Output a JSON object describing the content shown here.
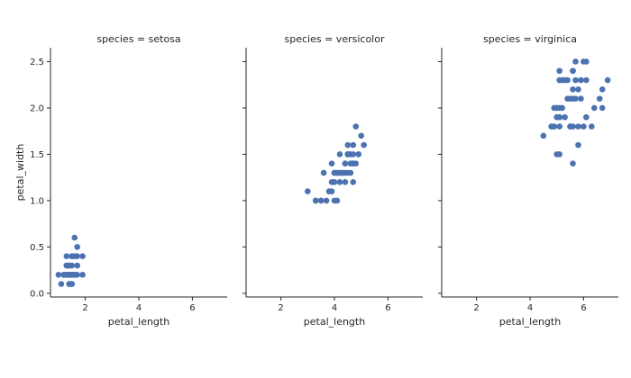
{
  "chart_data": {
    "type": "scatter",
    "marker_color": "#4c72b0",
    "xlim": [
      0.7,
      7.3
    ],
    "ylim": [
      -0.04,
      2.65
    ],
    "xticks": [
      2,
      4,
      6
    ],
    "yticks": [
      0.0,
      0.5,
      1.0,
      1.5,
      2.0,
      2.5
    ],
    "ytick_labels": [
      "0.0",
      "0.5",
      "1.0",
      "1.5",
      "2.0",
      "2.5"
    ],
    "xlabel": "petal_length",
    "ylabel": "petal_width",
    "grid": false,
    "facets": [
      {
        "title": "species = setosa",
        "points": [
          [
            1.4,
            0.2
          ],
          [
            1.4,
            0.2
          ],
          [
            1.3,
            0.2
          ],
          [
            1.5,
            0.2
          ],
          [
            1.4,
            0.2
          ],
          [
            1.7,
            0.4
          ],
          [
            1.4,
            0.3
          ],
          [
            1.5,
            0.2
          ],
          [
            1.4,
            0.2
          ],
          [
            1.5,
            0.1
          ],
          [
            1.5,
            0.2
          ],
          [
            1.6,
            0.2
          ],
          [
            1.4,
            0.1
          ],
          [
            1.1,
            0.1
          ],
          [
            1.2,
            0.2
          ],
          [
            1.5,
            0.4
          ],
          [
            1.3,
            0.4
          ],
          [
            1.4,
            0.3
          ],
          [
            1.7,
            0.3
          ],
          [
            1.5,
            0.3
          ],
          [
            1.7,
            0.2
          ],
          [
            1.5,
            0.4
          ],
          [
            1.0,
            0.2
          ],
          [
            1.7,
            0.5
          ],
          [
            1.9,
            0.2
          ],
          [
            1.6,
            0.2
          ],
          [
            1.6,
            0.4
          ],
          [
            1.5,
            0.2
          ],
          [
            1.4,
            0.2
          ],
          [
            1.6,
            0.2
          ],
          [
            1.6,
            0.2
          ],
          [
            1.5,
            0.4
          ],
          [
            1.5,
            0.1
          ],
          [
            1.4,
            0.2
          ],
          [
            1.5,
            0.2
          ],
          [
            1.2,
            0.2
          ],
          [
            1.3,
            0.2
          ],
          [
            1.4,
            0.1
          ],
          [
            1.3,
            0.2
          ],
          [
            1.5,
            0.2
          ],
          [
            1.3,
            0.3
          ],
          [
            1.3,
            0.3
          ],
          [
            1.3,
            0.2
          ],
          [
            1.6,
            0.6
          ],
          [
            1.9,
            0.4
          ],
          [
            1.4,
            0.3
          ],
          [
            1.6,
            0.2
          ],
          [
            1.4,
            0.2
          ],
          [
            1.5,
            0.2
          ],
          [
            1.4,
            0.2
          ]
        ]
      },
      {
        "title": "species = versicolor",
        "points": [
          [
            4.7,
            1.4
          ],
          [
            4.5,
            1.5
          ],
          [
            4.9,
            1.5
          ],
          [
            4.0,
            1.3
          ],
          [
            4.6,
            1.5
          ],
          [
            4.5,
            1.3
          ],
          [
            4.7,
            1.6
          ],
          [
            3.3,
            1.0
          ],
          [
            4.6,
            1.3
          ],
          [
            3.9,
            1.4
          ],
          [
            3.5,
            1.0
          ],
          [
            4.2,
            1.5
          ],
          [
            4.0,
            1.0
          ],
          [
            4.7,
            1.4
          ],
          [
            3.6,
            1.3
          ],
          [
            4.4,
            1.4
          ],
          [
            4.5,
            1.5
          ],
          [
            4.1,
            1.0
          ],
          [
            4.5,
            1.5
          ],
          [
            3.9,
            1.1
          ],
          [
            4.8,
            1.8
          ],
          [
            4.0,
            1.3
          ],
          [
            4.9,
            1.5
          ],
          [
            4.7,
            1.2
          ],
          [
            4.3,
            1.3
          ],
          [
            4.4,
            1.4
          ],
          [
            4.8,
            1.4
          ],
          [
            5.0,
            1.7
          ],
          [
            4.5,
            1.5
          ],
          [
            3.5,
            1.0
          ],
          [
            3.8,
            1.1
          ],
          [
            3.7,
            1.0
          ],
          [
            3.9,
            1.2
          ],
          [
            5.1,
            1.6
          ],
          [
            4.5,
            1.5
          ],
          [
            4.5,
            1.6
          ],
          [
            4.7,
            1.5
          ],
          [
            4.4,
            1.3
          ],
          [
            4.1,
            1.3
          ],
          [
            4.0,
            1.3
          ],
          [
            4.4,
            1.2
          ],
          [
            4.6,
            1.4
          ],
          [
            4.0,
            1.2
          ],
          [
            3.3,
            1.0
          ],
          [
            4.2,
            1.3
          ],
          [
            4.2,
            1.2
          ],
          [
            4.2,
            1.3
          ],
          [
            4.3,
            1.3
          ],
          [
            3.0,
            1.1
          ],
          [
            4.1,
            1.3
          ]
        ]
      },
      {
        "title": "species = virginica",
        "points": [
          [
            6.0,
            2.5
          ],
          [
            5.1,
            1.9
          ],
          [
            5.9,
            2.1
          ],
          [
            5.6,
            1.8
          ],
          [
            5.8,
            2.2
          ],
          [
            6.6,
            2.1
          ],
          [
            4.5,
            1.7
          ],
          [
            6.3,
            1.8
          ],
          [
            5.8,
            1.8
          ],
          [
            6.1,
            2.5
          ],
          [
            5.1,
            2.0
          ],
          [
            5.3,
            1.9
          ],
          [
            5.5,
            2.1
          ],
          [
            5.0,
            2.0
          ],
          [
            5.1,
            2.4
          ],
          [
            5.3,
            2.3
          ],
          [
            5.5,
            1.8
          ],
          [
            6.7,
            2.2
          ],
          [
            6.9,
            2.3
          ],
          [
            5.0,
            1.5
          ],
          [
            5.7,
            2.3
          ],
          [
            4.9,
            2.0
          ],
          [
            6.7,
            2.0
          ],
          [
            4.9,
            1.8
          ],
          [
            5.7,
            2.1
          ],
          [
            6.0,
            1.8
          ],
          [
            4.8,
            1.8
          ],
          [
            4.9,
            1.8
          ],
          [
            5.6,
            2.1
          ],
          [
            5.8,
            1.6
          ],
          [
            6.1,
            1.9
          ],
          [
            6.4,
            2.0
          ],
          [
            5.6,
            2.2
          ],
          [
            5.1,
            1.5
          ],
          [
            5.6,
            1.4
          ],
          [
            6.1,
            2.3
          ],
          [
            5.6,
            2.4
          ],
          [
            5.5,
            1.8
          ],
          [
            4.8,
            1.8
          ],
          [
            5.4,
            2.1
          ],
          [
            5.6,
            2.4
          ],
          [
            5.1,
            2.3
          ],
          [
            5.1,
            1.9
          ],
          [
            5.9,
            2.3
          ],
          [
            5.7,
            2.5
          ],
          [
            5.2,
            2.3
          ],
          [
            5.0,
            1.9
          ],
          [
            5.2,
            2.0
          ],
          [
            5.4,
            2.3
          ],
          [
            5.1,
            1.8
          ]
        ]
      }
    ]
  }
}
